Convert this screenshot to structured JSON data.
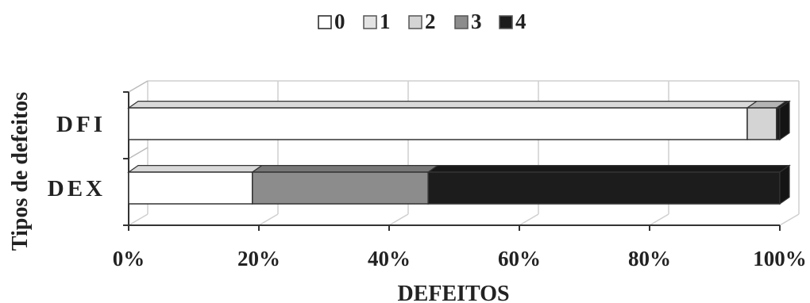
{
  "chart_data": {
    "type": "bar",
    "orientation": "horizontal",
    "stacked": "percent",
    "categories": [
      "DFI",
      "DEX"
    ],
    "series": [
      {
        "name": "0",
        "color": "#ffffff",
        "values": [
          95,
          19
        ]
      },
      {
        "name": "1",
        "color": "#e3e3e3",
        "values": [
          0,
          0
        ]
      },
      {
        "name": "2",
        "color": "#d4d4d4",
        "values": [
          4.5,
          0
        ]
      },
      {
        "name": "3",
        "color": "#8c8c8c",
        "values": [
          0,
          27
        ]
      },
      {
        "name": "4",
        "color": "#1c1c1c",
        "values": [
          0.5,
          54
        ]
      }
    ],
    "xlabel": "DEFEITOS",
    "ylabel": "Tipos de defeitos",
    "xlim": [
      0,
      100
    ],
    "xticks": [
      "0%",
      "20%",
      "40%",
      "60%",
      "80%",
      "100%"
    ],
    "grid": true,
    "legend_position": "top"
  }
}
